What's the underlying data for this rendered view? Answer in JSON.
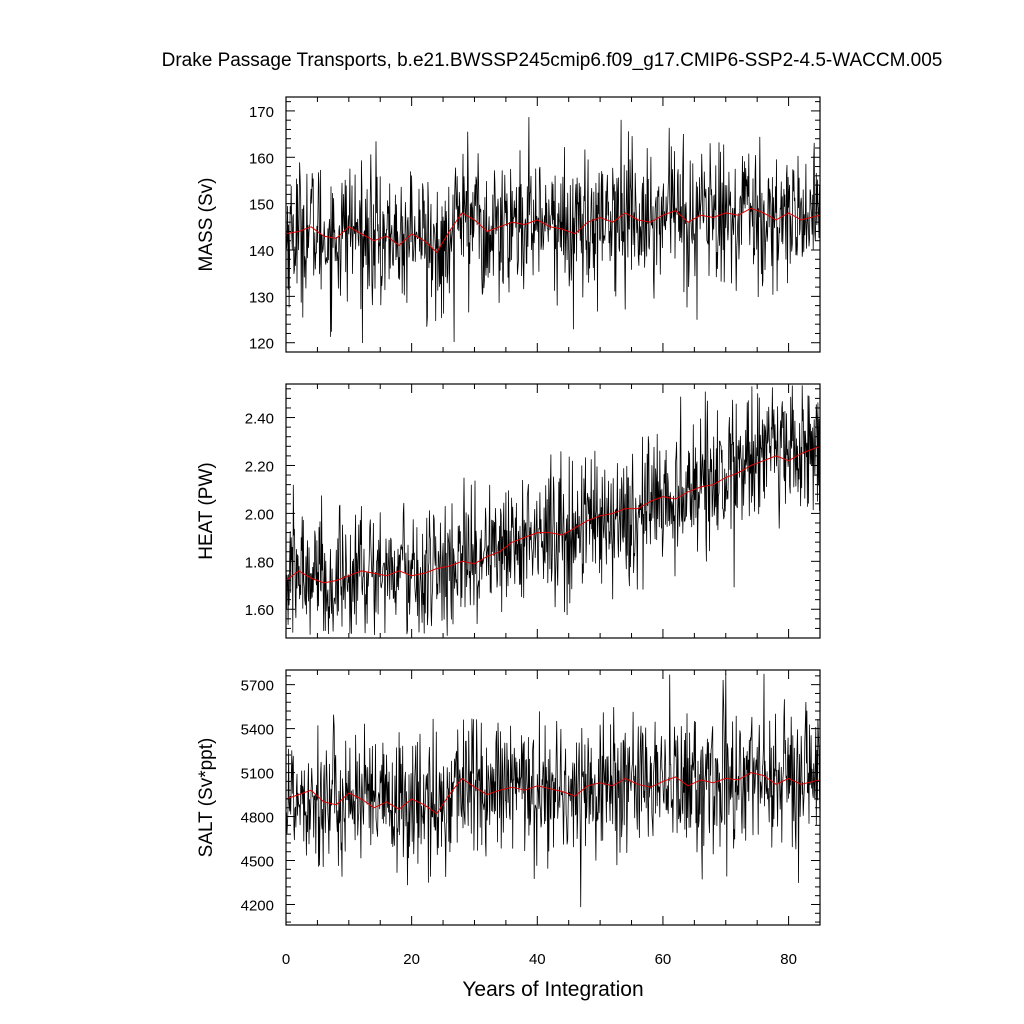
{
  "chart_data": {
    "type": "line",
    "title": "Drake Passage Transports, b.e21.BWSSP245cmip6.f09_g17.CMIP6-SSP2-4.5-WACCM.005",
    "xlabel": "Years of Integration",
    "xlim": [
      0,
      85
    ],
    "x_ticks": [
      0,
      20,
      40,
      60,
      80
    ],
    "x_tick_labels": [
      "0",
      "20",
      "40",
      "60",
      "80"
    ],
    "colors": {
      "raw": "#000000",
      "running_mean": "#e00000",
      "axes": "#000000"
    },
    "panels": [
      {
        "name": "mass",
        "ylabel": "MASS (Sv)",
        "ylim": [
          118,
          173
        ],
        "y_ticks": [
          120,
          130,
          140,
          150,
          160,
          170
        ],
        "y_tick_labels": [
          "120",
          "130",
          "140",
          "150",
          "160",
          "170"
        ],
        "running_mean": [
          [
            0,
            143.5
          ],
          [
            2,
            144.0
          ],
          [
            4,
            145.0
          ],
          [
            6,
            143.0
          ],
          [
            8,
            142.5
          ],
          [
            10,
            145.0
          ],
          [
            12,
            143.5
          ],
          [
            14,
            142.0
          ],
          [
            16,
            143.0
          ],
          [
            18,
            141.0
          ],
          [
            20,
            143.5
          ],
          [
            22,
            142.0
          ],
          [
            24,
            139.5
          ],
          [
            26,
            144.0
          ],
          [
            28,
            148.0
          ],
          [
            30,
            146.5
          ],
          [
            32,
            144.0
          ],
          [
            34,
            145.0
          ],
          [
            36,
            146.0
          ],
          [
            38,
            145.5
          ],
          [
            40,
            146.5
          ],
          [
            42,
            145.0
          ],
          [
            44,
            144.5
          ],
          [
            46,
            143.5
          ],
          [
            48,
            146.0
          ],
          [
            50,
            147.0
          ],
          [
            52,
            146.0
          ],
          [
            54,
            148.0
          ],
          [
            56,
            146.5
          ],
          [
            58,
            146.0
          ],
          [
            60,
            147.5
          ],
          [
            62,
            148.5
          ],
          [
            64,
            146.0
          ],
          [
            66,
            147.5
          ],
          [
            68,
            147.0
          ],
          [
            70,
            148.0
          ],
          [
            72,
            147.5
          ],
          [
            74,
            149.0
          ],
          [
            76,
            148.0
          ],
          [
            78,
            146.5
          ],
          [
            80,
            148.0
          ],
          [
            82,
            146.5
          ],
          [
            85,
            147.5
          ]
        ],
        "raw_min": 119,
        "raw_max": 172.5
      },
      {
        "name": "heat",
        "ylabel": "HEAT (PW)",
        "ylim": [
          1.48,
          2.54
        ],
        "y_ticks": [
          1.6,
          1.8,
          2.0,
          2.2,
          2.4
        ],
        "y_tick_labels": [
          "1.60",
          "1.80",
          "2.00",
          "2.20",
          "2.40"
        ],
        "running_mean": [
          [
            0,
            1.72
          ],
          [
            2,
            1.76
          ],
          [
            4,
            1.73
          ],
          [
            6,
            1.71
          ],
          [
            8,
            1.72
          ],
          [
            10,
            1.74
          ],
          [
            12,
            1.76
          ],
          [
            14,
            1.75
          ],
          [
            16,
            1.74
          ],
          [
            18,
            1.76
          ],
          [
            20,
            1.74
          ],
          [
            22,
            1.75
          ],
          [
            24,
            1.77
          ],
          [
            26,
            1.78
          ],
          [
            28,
            1.8
          ],
          [
            30,
            1.79
          ],
          [
            32,
            1.82
          ],
          [
            34,
            1.84
          ],
          [
            36,
            1.88
          ],
          [
            38,
            1.9
          ],
          [
            40,
            1.92
          ],
          [
            42,
            1.92
          ],
          [
            44,
            1.91
          ],
          [
            46,
            1.94
          ],
          [
            48,
            1.97
          ],
          [
            50,
            1.99
          ],
          [
            52,
            2.0
          ],
          [
            54,
            2.02
          ],
          [
            56,
            2.02
          ],
          [
            58,
            2.05
          ],
          [
            60,
            2.07
          ],
          [
            62,
            2.06
          ],
          [
            64,
            2.09
          ],
          [
            66,
            2.11
          ],
          [
            68,
            2.12
          ],
          [
            70,
            2.15
          ],
          [
            72,
            2.17
          ],
          [
            74,
            2.2
          ],
          [
            76,
            2.22
          ],
          [
            78,
            2.24
          ],
          [
            80,
            2.22
          ],
          [
            82,
            2.25
          ],
          [
            85,
            2.28
          ]
        ],
        "raw_min": 1.49,
        "raw_max": 2.54
      },
      {
        "name": "salt",
        "ylabel": "SALT (Sv*ppt)",
        "ylim": [
          4060,
          5800
        ],
        "y_ticks": [
          4200,
          4500,
          4800,
          5100,
          5400,
          5700
        ],
        "y_tick_labels": [
          "4200",
          "4500",
          "4800",
          "5100",
          "5400",
          "5700"
        ],
        "running_mean": [
          [
            0,
            4920
          ],
          [
            2,
            4950
          ],
          [
            4,
            4980
          ],
          [
            6,
            4900
          ],
          [
            8,
            4880
          ],
          [
            10,
            4960
          ],
          [
            12,
            4920
          ],
          [
            14,
            4860
          ],
          [
            16,
            4900
          ],
          [
            18,
            4850
          ],
          [
            20,
            4920
          ],
          [
            22,
            4880
          ],
          [
            24,
            4820
          ],
          [
            26,
            4950
          ],
          [
            28,
            5060
          ],
          [
            30,
            5000
          ],
          [
            32,
            4950
          ],
          [
            34,
            4980
          ],
          [
            36,
            5000
          ],
          [
            38,
            4980
          ],
          [
            40,
            5010
          ],
          [
            42,
            4990
          ],
          [
            44,
            4970
          ],
          [
            46,
            4940
          ],
          [
            48,
            5010
          ],
          [
            50,
            5030
          ],
          [
            52,
            5010
          ],
          [
            54,
            5060
          ],
          [
            56,
            5020
          ],
          [
            58,
            5000
          ],
          [
            60,
            5040
          ],
          [
            62,
            5070
          ],
          [
            64,
            5010
          ],
          [
            66,
            5050
          ],
          [
            68,
            5030
          ],
          [
            70,
            5060
          ],
          [
            72,
            5050
          ],
          [
            74,
            5100
          ],
          [
            76,
            5080
          ],
          [
            78,
            5020
          ],
          [
            80,
            5060
          ],
          [
            82,
            5020
          ],
          [
            85,
            5050
          ]
        ],
        "raw_min": 4090,
        "raw_max": 5790
      }
    ]
  }
}
